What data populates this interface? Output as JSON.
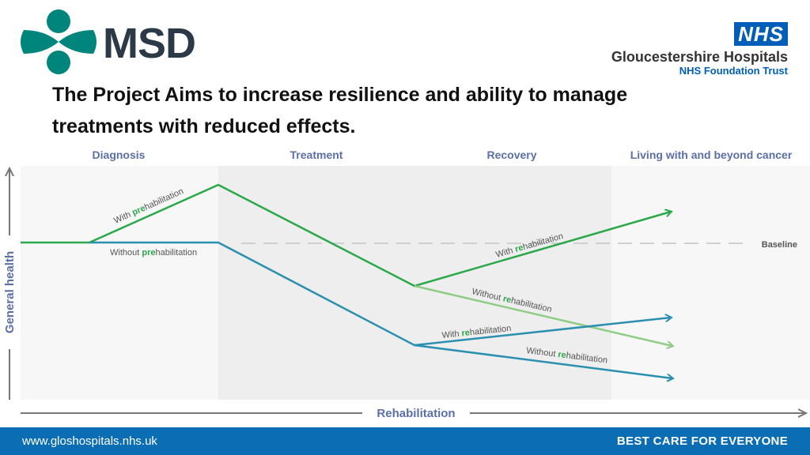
{
  "logos": {
    "msd": {
      "wordmark": "MSD",
      "color": "#2c3a48",
      "accent": "#00857c"
    },
    "nhs": {
      "badge": "NHS",
      "organisation": "Gloucestershire Hospitals",
      "trust": "NHS Foundation Trust",
      "color": "#005eb8"
    }
  },
  "headline": {
    "line1": "The Project Aims to increase resilience and ability to manage",
    "line2": "treatments with reduced effects."
  },
  "diagram": {
    "phases": [
      "Diagnosis",
      "Treatment",
      "Recovery",
      "Living with and beyond cancer"
    ],
    "y_axis_label": "General health",
    "x_axis_label": "Rehabilitation",
    "baseline_label": "Baseline",
    "labels": {
      "with_prehab": {
        "before": "With ",
        "highlight": "pre",
        "after": "habilitation"
      },
      "without_prehab": {
        "before": "Without ",
        "highlight": "pre",
        "after": "habilitation"
      },
      "with_rehab_upper": {
        "before": "With ",
        "highlight": "re",
        "after": "habilitation"
      },
      "without_rehab_upper": {
        "before": "Without ",
        "highlight": "re",
        "after": "habilitation"
      },
      "with_rehab_lower": {
        "before": "With ",
        "highlight": "re",
        "after": "habilitation"
      },
      "without_rehab_lower": {
        "before": "Without ",
        "highlight": "re",
        "after": "habilitation"
      }
    },
    "colors": {
      "phase_text": "#5b6fa8",
      "green": "#2aa84a",
      "light_green": "#8fcc86",
      "blue": "#2b8fb0",
      "highlight": "#2aa84a",
      "shade": "#eeeeee"
    }
  },
  "footer": {
    "url": "www.gloshospitals.nhs.uk",
    "motto": "BEST CARE FOR EVERYONE",
    "color": "#0b6eb5"
  }
}
